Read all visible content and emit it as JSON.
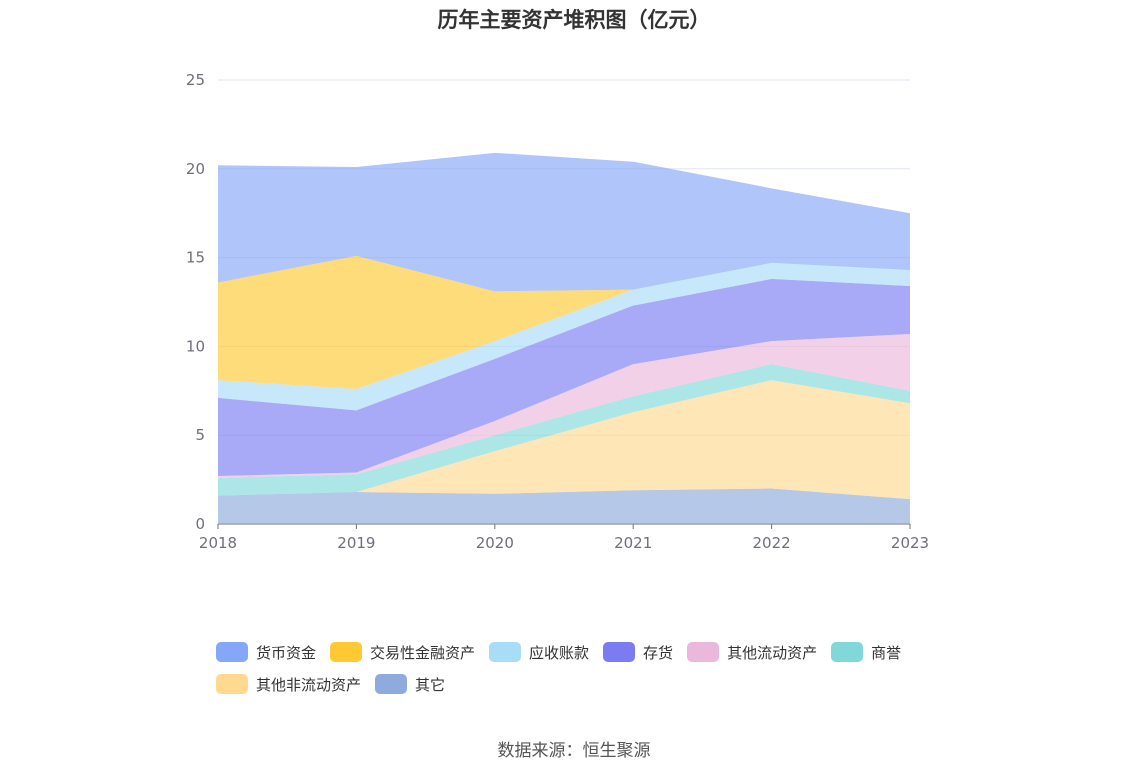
{
  "chart_data": {
    "type": "area",
    "stacked": true,
    "title": "历年主要资产堆积图（亿元）",
    "x": [
      "2018",
      "2019",
      "2020",
      "2021",
      "2022",
      "2023"
    ],
    "ylim": [
      0,
      25
    ],
    "yticks": [
      0,
      5,
      10,
      15,
      20,
      25
    ],
    "grid": true,
    "legend_position": "bottom",
    "series": [
      {
        "name": "其它",
        "color": "#8faadc",
        "values": [
          1.6,
          1.8,
          1.7,
          1.9,
          2.0,
          1.4
        ]
      },
      {
        "name": "其他非流动资产",
        "color": "#ffd98f",
        "values": [
          0.0,
          0.0,
          2.4,
          4.4,
          6.1,
          5.4
        ]
      },
      {
        "name": "商誉",
        "color": "#80d8d8",
        "values": [
          1.0,
          1.0,
          0.9,
          0.9,
          0.9,
          0.7
        ]
      },
      {
        "name": "其他流动资产",
        "color": "#ebb8db",
        "values": [
          0.1,
          0.1,
          0.8,
          1.8,
          1.3,
          3.2
        ]
      },
      {
        "name": "存货",
        "color": "#7b7cf2",
        "values": [
          4.4,
          3.5,
          3.5,
          3.3,
          3.5,
          2.7
        ]
      },
      {
        "name": "应收账款",
        "color": "#a8dcf7",
        "values": [
          1.0,
          1.2,
          1.0,
          0.9,
          0.9,
          0.9
        ]
      },
      {
        "name": "交易性金融资产",
        "color": "#ffc933",
        "values": [
          5.5,
          7.5,
          2.8,
          0.0,
          0.0,
          0.0
        ]
      },
      {
        "name": "货币资金",
        "color": "#86a6f8",
        "values": [
          6.6,
          5.0,
          7.8,
          7.2,
          4.2,
          3.2
        ]
      }
    ],
    "legend_order": [
      "货币资金",
      "交易性金融资产",
      "应收账款",
      "存货",
      "其他流动资产",
      "商誉",
      "其他非流动资产",
      "其它"
    ]
  },
  "source": "数据来源：恒生聚源"
}
